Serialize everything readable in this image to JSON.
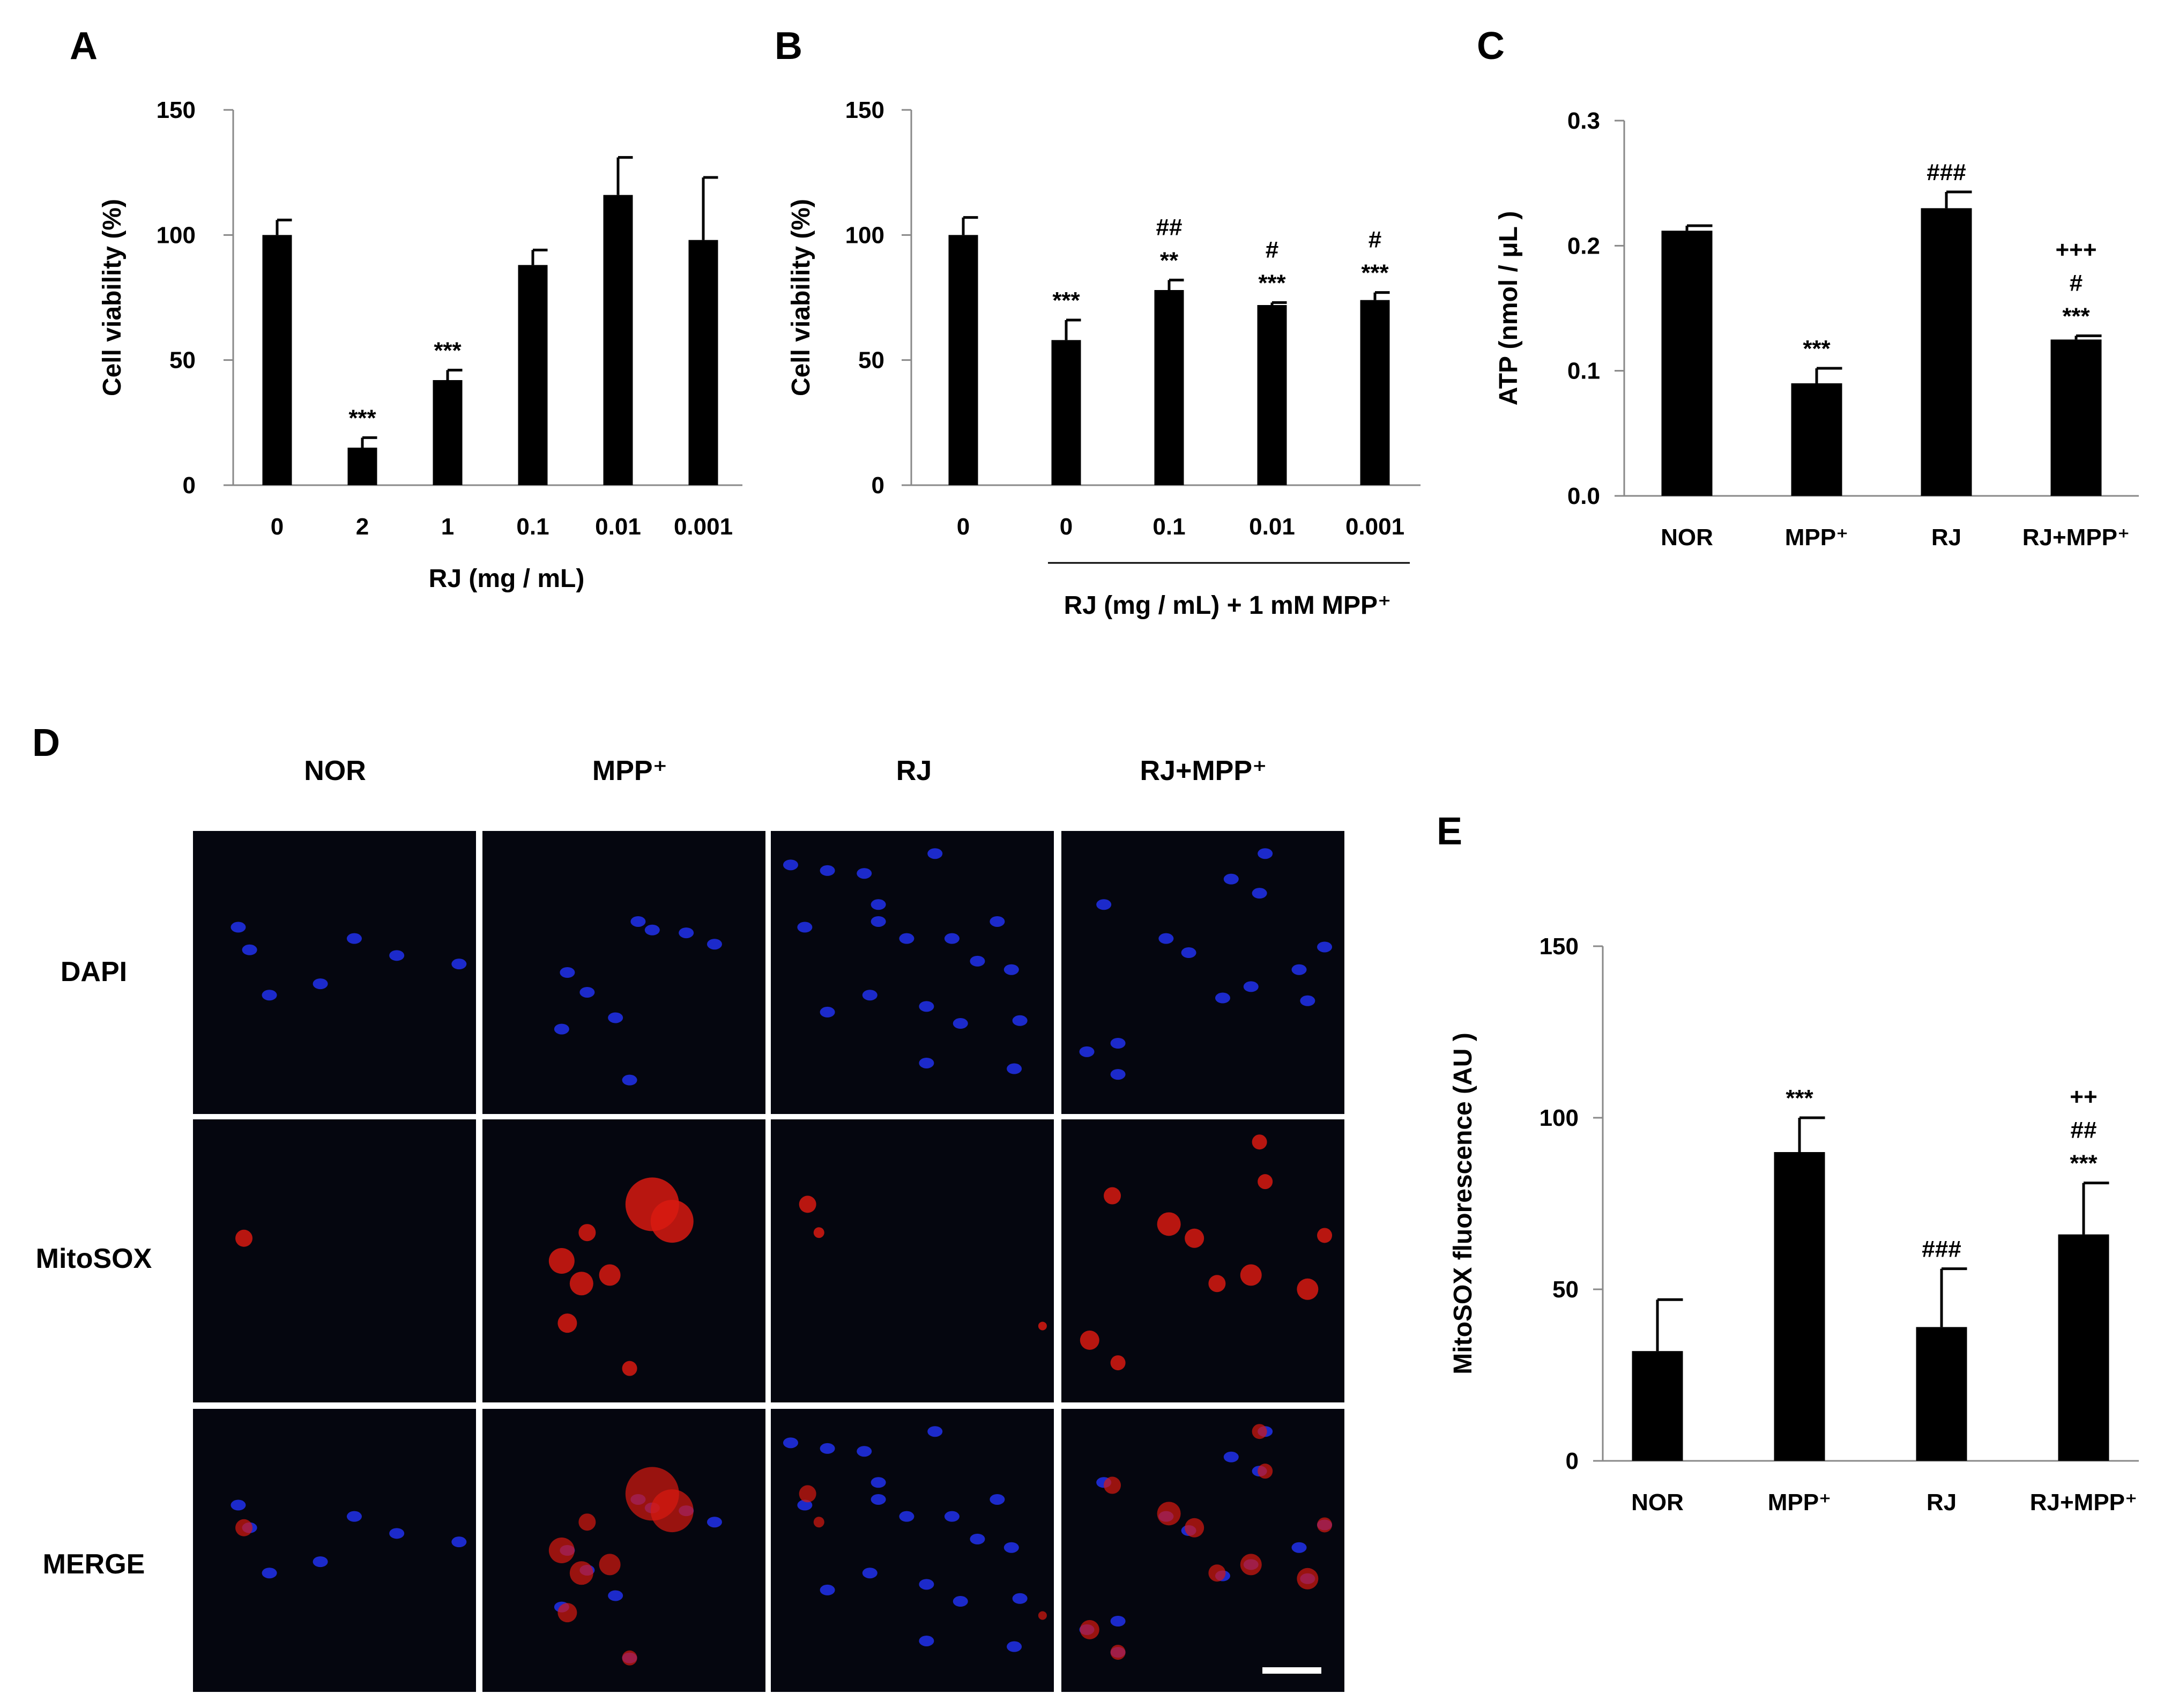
{
  "chart_data": [
    {
      "panel": "A",
      "type": "bar",
      "ylabel": "Cell viability (%)",
      "xlabel": "RJ (mg / mL)",
      "group_label": "",
      "categories": [
        "0",
        "2",
        "1",
        "0.1",
        "0.01",
        "0.001"
      ],
      "values": [
        100,
        15,
        42,
        88,
        116,
        98
      ],
      "errors": [
        6,
        4,
        4,
        6,
        15,
        25
      ],
      "significance": [
        [],
        [
          "***"
        ],
        [
          "***"
        ],
        [],
        [],
        []
      ],
      "ylim": [
        0,
        150
      ],
      "yticks": [
        "0",
        "50",
        "100",
        "150"
      ]
    },
    {
      "panel": "B",
      "type": "bar",
      "ylabel": "Cell viability (%)",
      "xlabel": "",
      "group_label": "RJ (mg / mL) + 1 mM MPP⁺",
      "categories": [
        "0",
        "0",
        "0.1",
        "0.01",
        "0.001"
      ],
      "values": [
        100,
        58,
        78,
        72,
        74
      ],
      "errors": [
        7,
        8,
        4,
        1,
        3
      ],
      "significance": [
        [],
        [
          "***"
        ],
        [
          "##",
          "**"
        ],
        [
          "#",
          "***"
        ],
        [
          "#",
          "***"
        ]
      ],
      "ylim": [
        0,
        150
      ],
      "yticks": [
        "0",
        "50",
        "100",
        "150"
      ]
    },
    {
      "panel": "C",
      "type": "bar",
      "ylabel": "ATP (nmol / μL )",
      "xlabel": "",
      "group_label": "",
      "categories": [
        "NOR",
        "MPP⁺",
        "RJ",
        "RJ+MPP⁺"
      ],
      "values": [
        0.212,
        0.09,
        0.23,
        0.125
      ],
      "errors": [
        0.004,
        0.012,
        0.013,
        0.003
      ],
      "significance": [
        [],
        [
          "***"
        ],
        [
          "###"
        ],
        [
          "+++",
          "#",
          "***"
        ]
      ],
      "ylim": [
        0,
        0.3
      ],
      "yticks": [
        "0.0",
        "0.1",
        "0.2",
        "0.3"
      ]
    },
    {
      "panel": "E",
      "type": "bar",
      "ylabel": "MitoSOX fluorescence (AU )",
      "xlabel": "",
      "group_label": "",
      "categories": [
        "NOR",
        "MPP⁺",
        "RJ",
        "RJ+MPP⁺"
      ],
      "values": [
        32,
        90,
        39,
        66
      ],
      "errors": [
        15,
        10,
        17,
        15
      ],
      "significance": [
        [],
        [
          "***"
        ],
        [
          "###"
        ],
        [
          "++",
          "##",
          "***"
        ]
      ],
      "ylim": [
        0,
        150
      ],
      "yticks": [
        "0",
        "50",
        "100",
        "150"
      ]
    }
  ],
  "micrograph": {
    "panel": "D",
    "columns": [
      "NOR",
      "MPP⁺",
      "RJ",
      "RJ+MPP⁺"
    ],
    "rows": [
      "DAPI",
      "MitoSOX",
      "MERGE"
    ]
  },
  "colors": {
    "bar": "#000000",
    "background": "#ffffff",
    "panel_bg": "#05060f",
    "dapi": "#1f2fe0",
    "mitosox": "#d81a10",
    "grid_separator": "#ffffff"
  }
}
